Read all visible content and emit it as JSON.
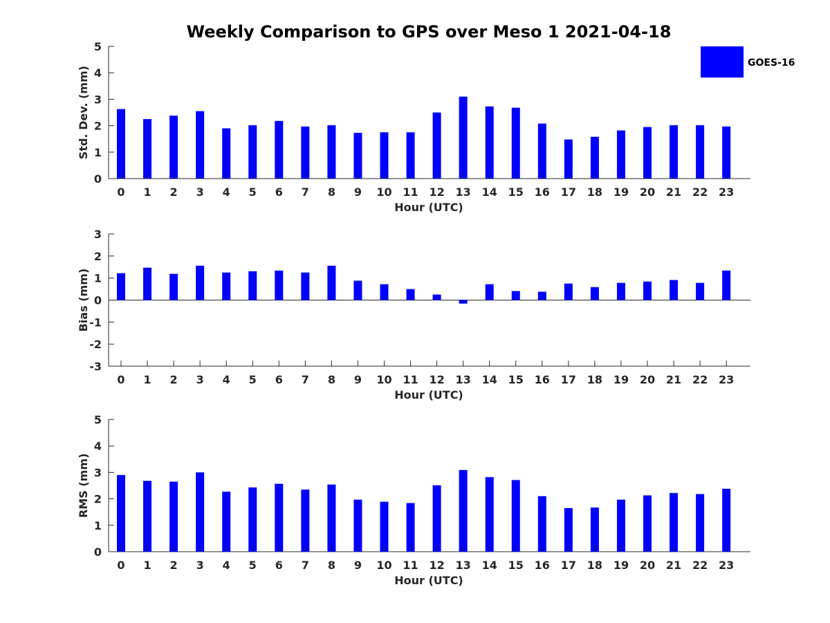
{
  "figure": {
    "title": "Weekly Comparison to GPS over Meso 1 2021-04-18"
  },
  "legend": {
    "label": "GOES-16",
    "color": "#0000ff",
    "placement": "top-right"
  },
  "chart_data": [
    {
      "type": "bar",
      "categories": [
        "0",
        "1",
        "2",
        "3",
        "4",
        "5",
        "6",
        "7",
        "8",
        "9",
        "10",
        "11",
        "12",
        "13",
        "14",
        "15",
        "16",
        "17",
        "18",
        "19",
        "20",
        "21",
        "22",
        "23"
      ],
      "series": [
        {
          "name": "GOES-16",
          "values": [
            2.63,
            2.25,
            2.38,
            2.55,
            1.9,
            2.02,
            2.18,
            1.97,
            2.02,
            1.73,
            1.75,
            1.75,
            2.5,
            3.1,
            2.73,
            2.68,
            2.08,
            1.48,
            1.58,
            1.82,
            1.95,
            2.02,
            2.02,
            1.97
          ]
        }
      ],
      "ylabel": "Std. Dev. (mm)",
      "xlabel": "Hour (UTC)",
      "ylim": [
        0,
        5
      ],
      "yticks": [
        "0",
        "1",
        "2",
        "3",
        "4",
        "5"
      ]
    },
    {
      "type": "bar",
      "categories": [
        "0",
        "1",
        "2",
        "3",
        "4",
        "5",
        "6",
        "7",
        "8",
        "9",
        "10",
        "11",
        "12",
        "13",
        "14",
        "15",
        "16",
        "17",
        "18",
        "19",
        "20",
        "21",
        "22",
        "23"
      ],
      "series": [
        {
          "name": "GOES-16",
          "values": [
            1.22,
            1.47,
            1.19,
            1.56,
            1.25,
            1.31,
            1.34,
            1.25,
            1.56,
            0.88,
            0.72,
            0.5,
            0.25,
            -0.16,
            0.72,
            0.41,
            0.38,
            0.75,
            0.59,
            0.78,
            0.84,
            0.91,
            0.78,
            1.34
          ]
        }
      ],
      "ylabel": "Bias (mm)",
      "xlabel": "Hour (UTC)",
      "ylim": [
        -3,
        3
      ],
      "yticks": [
        "-3",
        "-2",
        "-1",
        "0",
        "1",
        "2",
        "3"
      ]
    },
    {
      "type": "bar",
      "categories": [
        "0",
        "1",
        "2",
        "3",
        "4",
        "5",
        "6",
        "7",
        "8",
        "9",
        "10",
        "11",
        "12",
        "13",
        "14",
        "15",
        "16",
        "17",
        "18",
        "19",
        "20",
        "21",
        "22",
        "23"
      ],
      "series": [
        {
          "name": "GOES-16",
          "values": [
            2.9,
            2.68,
            2.65,
            3.0,
            2.27,
            2.43,
            2.57,
            2.35,
            2.54,
            1.97,
            1.89,
            1.84,
            2.51,
            3.09,
            2.82,
            2.71,
            2.1,
            1.65,
            1.67,
            1.97,
            2.13,
            2.22,
            2.18,
            2.38
          ]
        }
      ],
      "ylabel": "RMS (mm)",
      "xlabel": "Hour (UTC)",
      "ylim": [
        0,
        5
      ],
      "yticks": [
        "0",
        "1",
        "2",
        "3",
        "4",
        "5"
      ]
    }
  ]
}
